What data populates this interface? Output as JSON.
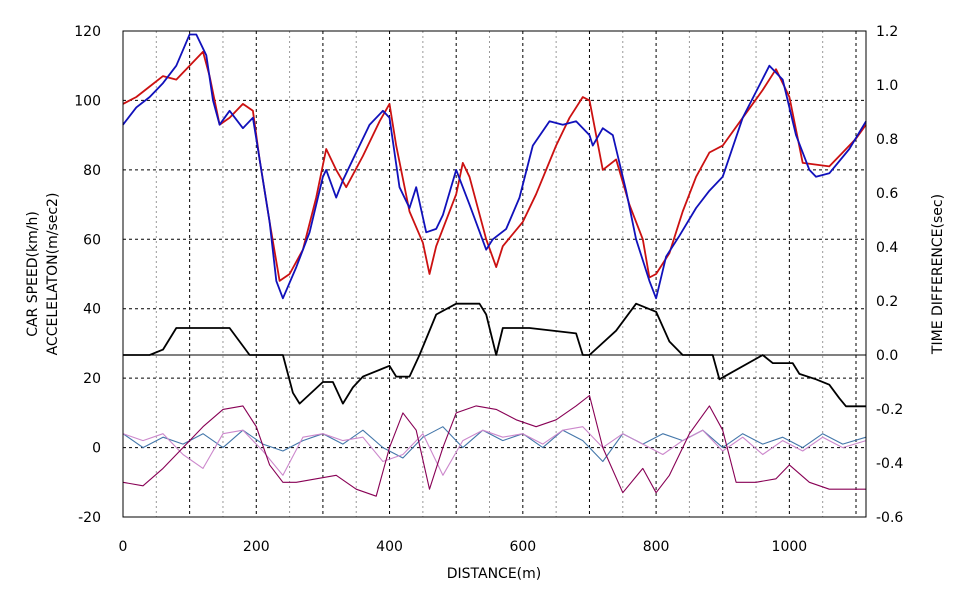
{
  "chart_data": {
    "type": "line",
    "xlabel": "DISTANCE(m)",
    "ylabel_line1": "CAR SPEED(km/h)",
    "ylabel_line2": "ACCELELATON(m/sec2)",
    "y2label": "TIME DIFFERENCE(sec)",
    "xlim": [
      0,
      1115
    ],
    "ylim": [
      -20,
      120
    ],
    "y2lim": [
      -0.6,
      1.2
    ],
    "x_ticks": [
      "0",
      "200",
      "400",
      "600",
      "800",
      "1000"
    ],
    "y_ticks": [
      "-20",
      "0",
      "20",
      "40",
      "60",
      "80",
      "100",
      "120"
    ],
    "y2_ticks": [
      "-0.6",
      "-0.4",
      "-0.2",
      "0.0",
      "0.2",
      "0.4",
      "0.6",
      "0.8",
      "1.0",
      "1.2"
    ],
    "grid": true,
    "series": [
      {
        "color": "#cc1111",
        "axis": "left",
        "x": [
          0,
          20,
          40,
          60,
          80,
          100,
          120,
          130,
          145,
          160,
          180,
          195,
          205,
          220,
          235,
          250,
          270,
          290,
          305,
          320,
          335,
          360,
          385,
          400,
          410,
          430,
          450,
          460,
          470,
          500,
          510,
          520,
          545,
          560,
          570,
          600,
          620,
          650,
          670,
          690,
          700,
          720,
          740,
          760,
          780,
          790,
          800,
          820,
          840,
          860,
          880,
          900,
          930,
          960,
          980,
          1000,
          1020,
          1060,
          1080,
          1100,
          1115
        ],
        "values": [
          99,
          101,
          104,
          107,
          106,
          110,
          114,
          107,
          93,
          95,
          99,
          97,
          83,
          65,
          48,
          50,
          57,
          72,
          86,
          80,
          75,
          84,
          94,
          99,
          87,
          68,
          59,
          50,
          58,
          73,
          82,
          78,
          60,
          52,
          58,
          65,
          73,
          87,
          95,
          101,
          100,
          80,
          83,
          70,
          60,
          49,
          50,
          56,
          68,
          78,
          85,
          87,
          95,
          103,
          109,
          101,
          82,
          81,
          85,
          89,
          93
        ]
      },
      {
        "color": "#1111bb",
        "axis": "left",
        "x": [
          0,
          20,
          40,
          60,
          80,
          100,
          110,
          125,
          135,
          145,
          160,
          180,
          195,
          205,
          220,
          230,
          240,
          260,
          280,
          300,
          305,
          320,
          330,
          350,
          370,
          390,
          400,
          415,
          430,
          440,
          455,
          470,
          480,
          500,
          520,
          545,
          555,
          575,
          595,
          615,
          640,
          660,
          680,
          700,
          705,
          720,
          735,
          755,
          770,
          790,
          800,
          815,
          835,
          860,
          880,
          900,
          930,
          970,
          990,
          1010,
          1030,
          1040,
          1060,
          1090,
          1115
        ],
        "values": [
          93,
          98,
          101,
          105,
          110,
          119,
          119,
          113,
          100,
          93,
          97,
          92,
          95,
          83,
          65,
          48,
          43,
          52,
          62,
          78,
          80,
          72,
          77,
          85,
          93,
          97,
          95,
          75,
          69,
          75,
          62,
          63,
          67,
          80,
          70,
          57,
          60,
          63,
          72,
          87,
          94,
          93,
          94,
          90,
          87,
          92,
          90,
          74,
          60,
          48,
          43,
          55,
          61,
          69,
          74,
          78,
          95,
          110,
          106,
          90,
          80,
          78,
          79,
          86,
          94
        ]
      },
      {
        "color": "#000000",
        "axis": "right",
        "x": [
          0,
          40,
          60,
          80,
          160,
          190,
          240,
          255,
          265,
          300,
          315,
          330,
          345,
          360,
          400,
          410,
          430,
          445,
          470,
          500,
          535,
          545,
          560,
          570,
          610,
          680,
          690,
          700,
          740,
          770,
          800,
          820,
          840,
          885,
          895,
          960,
          975,
          1005,
          1015,
          1040,
          1060,
          1075,
          1085,
          1115
        ],
        "values": [
          0.0,
          0.0,
          0.02,
          0.1,
          0.1,
          0.0,
          0.0,
          -0.14,
          -0.18,
          -0.1,
          -0.1,
          -0.18,
          -0.12,
          -0.08,
          -0.04,
          -0.08,
          -0.08,
          0.0,
          0.15,
          0.19,
          0.19,
          0.15,
          0.0,
          0.1,
          0.1,
          0.08,
          0.0,
          0.0,
          0.09,
          0.19,
          0.16,
          0.05,
          0.0,
          0.0,
          -0.09,
          0.0,
          -0.03,
          -0.03,
          -0.07,
          -0.09,
          -0.11,
          -0.16,
          -0.19,
          -0.19
        ]
      },
      {
        "color": "#880055",
        "axis": "left",
        "x": [
          0,
          30,
          60,
          90,
          120,
          150,
          180,
          200,
          220,
          240,
          260,
          290,
          320,
          350,
          380,
          400,
          420,
          440,
          460,
          480,
          500,
          530,
          560,
          590,
          620,
          650,
          680,
          700,
          720,
          750,
          780,
          800,
          820,
          850,
          880,
          900,
          920,
          950,
          980,
          1000,
          1030,
          1060,
          1090,
          1115
        ],
        "values": [
          -10,
          -11,
          -6,
          0,
          6,
          11,
          12,
          6,
          -5,
          -10,
          -10,
          -9,
          -8,
          -12,
          -14,
          0,
          10,
          5,
          -12,
          0,
          10,
          12,
          11,
          8,
          6,
          8,
          12,
          15,
          0,
          -13,
          -6,
          -13,
          -8,
          4,
          12,
          5,
          -10,
          -10,
          -9,
          -5,
          -10,
          -12,
          -12,
          -12
        ]
      },
      {
        "color": "#4477aa",
        "axis": "left",
        "x": [
          0,
          30,
          60,
          90,
          120,
          150,
          180,
          210,
          240,
          270,
          300,
          330,
          360,
          390,
          420,
          450,
          480,
          510,
          540,
          570,
          600,
          630,
          660,
          690,
          720,
          750,
          780,
          810,
          840,
          870,
          900,
          930,
          960,
          990,
          1020,
          1050,
          1080,
          1115
        ],
        "values": [
          4,
          0,
          3,
          1,
          4,
          0,
          5,
          1,
          -1,
          2,
          4,
          1,
          5,
          0,
          -3,
          3,
          6,
          0,
          5,
          2,
          4,
          0,
          5,
          2,
          -4,
          4,
          1,
          4,
          2,
          5,
          0,
          4,
          1,
          3,
          0,
          4,
          1,
          3
        ]
      },
      {
        "color": "#cc88cc",
        "axis": "left",
        "x": [
          0,
          30,
          60,
          90,
          120,
          150,
          180,
          210,
          240,
          270,
          300,
          330,
          360,
          390,
          420,
          450,
          480,
          510,
          540,
          570,
          600,
          630,
          660,
          690,
          720,
          750,
          780,
          810,
          840,
          870,
          900,
          930,
          960,
          990,
          1020,
          1050,
          1080,
          1115
        ],
        "values": [
          4,
          2,
          4,
          -2,
          -6,
          4,
          5,
          -1,
          -8,
          3,
          4,
          2,
          3,
          -4,
          -2,
          4,
          -8,
          2,
          5,
          3,
          4,
          1,
          5,
          6,
          0,
          4,
          1,
          -2,
          2,
          5,
          -1,
          3,
          -2,
          2,
          -1,
          3,
          0,
          2
        ]
      }
    ]
  }
}
